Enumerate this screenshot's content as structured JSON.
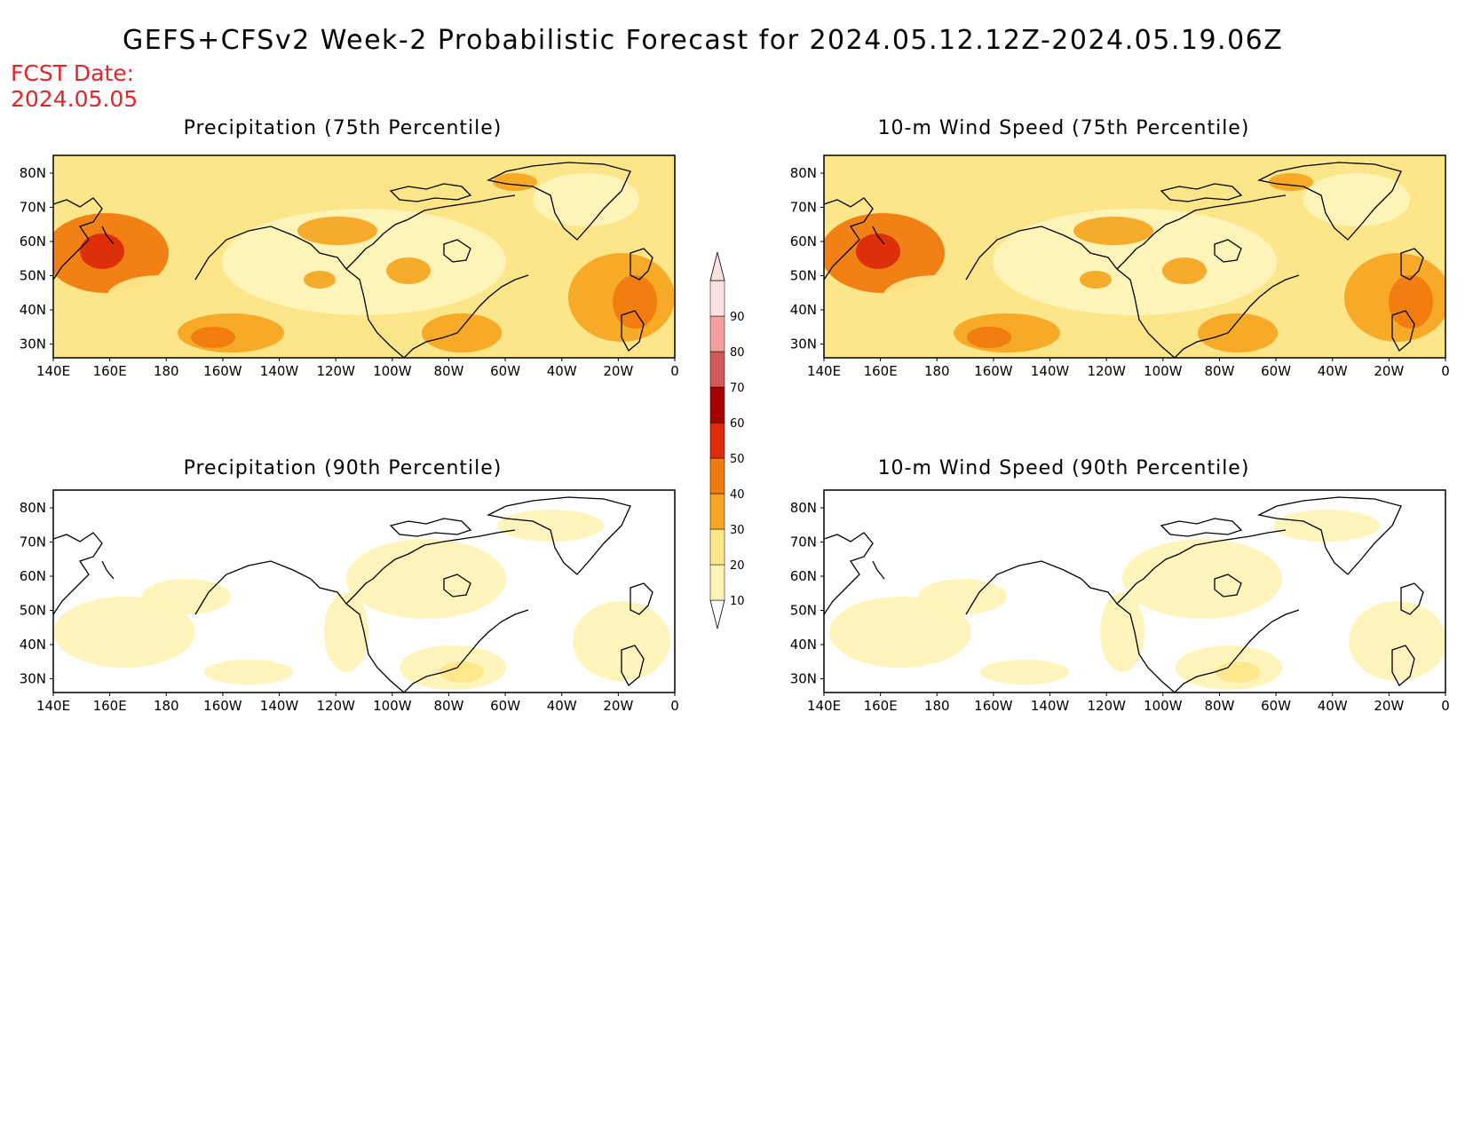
{
  "title": "GEFS+CFSv2 Week-2 Probabilistic Forecast for 2024.05.12.12Z-2024.05.19.06Z",
  "fcst_label": "FCST Date:",
  "fcst_date": "2024.05.05",
  "panels": [
    {
      "title": "Precipitation (75th Percentile)",
      "level": "high"
    },
    {
      "title": "10-m Wind Speed (75th Percentile)",
      "level": "high"
    },
    {
      "title": "Precipitation (90th Percentile)",
      "level": "low"
    },
    {
      "title": "10-m Wind Speed (90th Percentile)",
      "level": "low"
    }
  ],
  "lon_ticks": [
    "140E",
    "160E",
    "180",
    "160W",
    "140W",
    "120W",
    "100W",
    "80W",
    "60W",
    "40W",
    "20W",
    "0"
  ],
  "lat_ticks": [
    "80N",
    "70N",
    "60N",
    "50N",
    "40N",
    "30N"
  ],
  "colorbar": {
    "levels": [
      "10",
      "20",
      "30",
      "40",
      "50",
      "60",
      "70",
      "80",
      "90"
    ],
    "colors": [
      "#fff4b8",
      "#fde68a",
      "#f5a623",
      "#f07b0e",
      "#dc2a0b",
      "#a80000",
      "#d45a5a",
      "#f29f9f",
      "#fde0e0"
    ]
  }
}
